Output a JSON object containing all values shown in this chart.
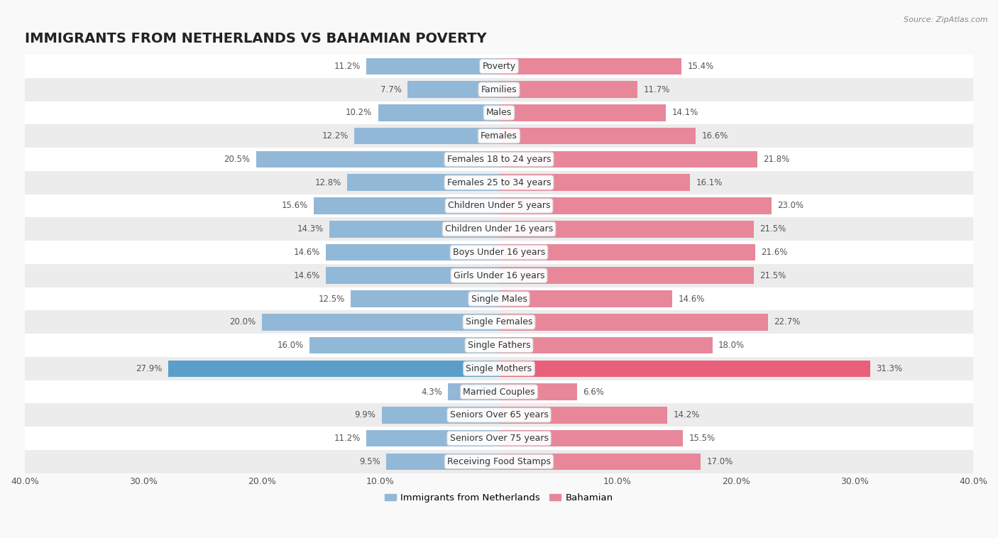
{
  "title": "IMMIGRANTS FROM NETHERLANDS VS BAHAMIAN POVERTY",
  "source": "Source: ZipAtlas.com",
  "categories": [
    "Poverty",
    "Families",
    "Males",
    "Females",
    "Females 18 to 24 years",
    "Females 25 to 34 years",
    "Children Under 5 years",
    "Children Under 16 years",
    "Boys Under 16 years",
    "Girls Under 16 years",
    "Single Males",
    "Single Females",
    "Single Fathers",
    "Single Mothers",
    "Married Couples",
    "Seniors Over 65 years",
    "Seniors Over 75 years",
    "Receiving Food Stamps"
  ],
  "left_values": [
    11.2,
    7.7,
    10.2,
    12.2,
    20.5,
    12.8,
    15.6,
    14.3,
    14.6,
    14.6,
    12.5,
    20.0,
    16.0,
    27.9,
    4.3,
    9.9,
    11.2,
    9.5
  ],
  "right_values": [
    15.4,
    11.7,
    14.1,
    16.6,
    21.8,
    16.1,
    23.0,
    21.5,
    21.6,
    21.5,
    14.6,
    22.7,
    18.0,
    31.3,
    6.6,
    14.2,
    15.5,
    17.0
  ],
  "left_color": "#92b8d8",
  "right_color": "#e8879a",
  "highlight_left_color": "#5b9ec9",
  "highlight_right_color": "#e8607a",
  "highlight_rows": [
    13
  ],
  "bar_height": 0.72,
  "xlim": 40.0,
  "background_color": "#f9f9f9",
  "row_bg_white": "#ffffff",
  "row_bg_gray": "#ececec",
  "legend_left_label": "Immigrants from Netherlands",
  "legend_right_label": "Bahamian",
  "title_fontsize": 14,
  "label_fontsize": 9,
  "value_fontsize": 8.5,
  "axis_label_fontsize": 9
}
